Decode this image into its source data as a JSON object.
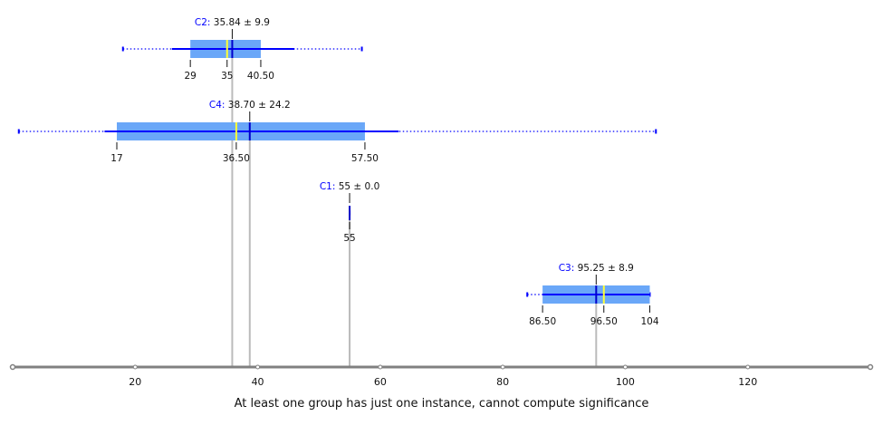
{
  "chart_data": {
    "type": "boxplot",
    "xlim": [
      0,
      140
    ],
    "x_ticks": [
      20,
      40,
      60,
      80,
      100,
      120
    ],
    "colors": {
      "box": "#6aa7f8",
      "whisker": "#0000ff",
      "median": "#ffff33",
      "mean": "#0000cc",
      "axis": "#808080",
      "guide": "#bbbbbb",
      "group_label": "#0000ff"
    },
    "groups": [
      {
        "name": "C2",
        "stat_text": "35.84 ± 9.9",
        "mean": 35.84,
        "median": 35,
        "q1": 29,
        "q3": 40.5,
        "whisker_low": 26,
        "whisker_high": 46,
        "min": 18,
        "max": 57,
        "box_labels": [
          "29",
          "35",
          "40.50"
        ]
      },
      {
        "name": "C4",
        "stat_text": "38.70 ± 24.2",
        "mean": 38.7,
        "median": 36.5,
        "q1": 17,
        "q3": 57.5,
        "whisker_low": 15,
        "whisker_high": 63,
        "min": 1,
        "max": 105,
        "box_labels": [
          "17",
          "36.50",
          "57.50"
        ]
      },
      {
        "name": "C1",
        "stat_text": "55 ± 0.0",
        "mean": 55,
        "median": 55,
        "q1": 55,
        "q3": 55,
        "whisker_low": 55,
        "whisker_high": 55,
        "min": 55,
        "max": 55,
        "box_labels": [
          "55"
        ]
      },
      {
        "name": "C3",
        "stat_text": "95.25 ± 8.9",
        "mean": 95.25,
        "median": 96.5,
        "q1": 86.5,
        "q3": 104,
        "whisker_low": 86.5,
        "whisker_high": 104,
        "min": 84,
        "max": 104,
        "box_labels": [
          "86.50",
          "96.50",
          "104"
        ]
      }
    ]
  },
  "footer": {
    "message": "At least one group has just one instance, cannot compute significance"
  }
}
